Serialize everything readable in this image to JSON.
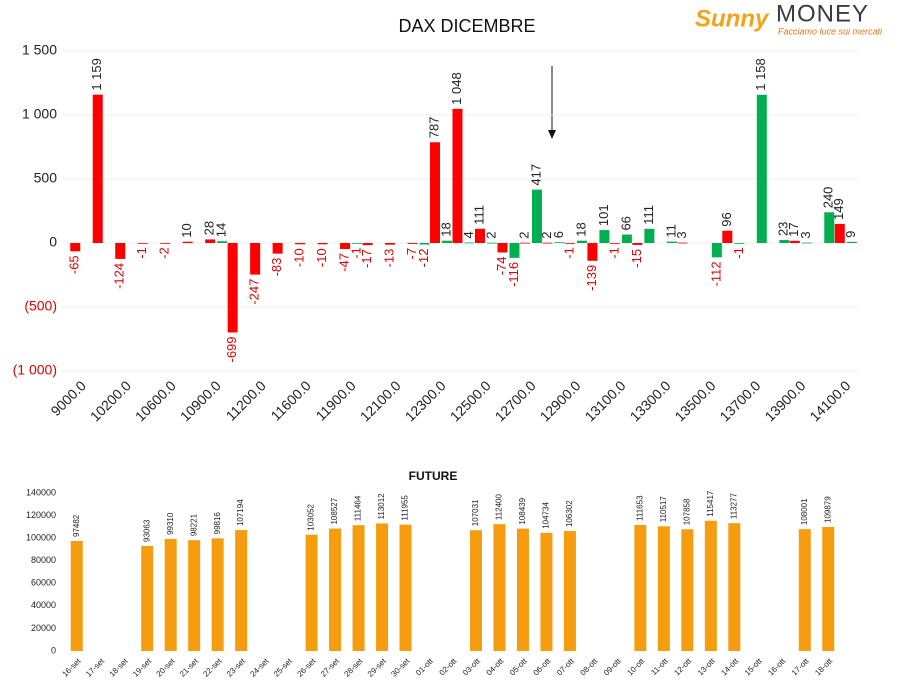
{
  "logo": {
    "brand": "Sunny",
    "name": "MONEY",
    "tagline": "Facciamo luce sui mercati"
  },
  "chart_data": [
    {
      "type": "bar",
      "title": "DAX DICEMBRE",
      "categories": [
        "9000.0",
        null,
        "10200.0",
        null,
        "10600.0",
        null,
        "10900.0",
        null,
        "11200.0",
        null,
        "11600.0",
        null,
        "11900.0",
        null,
        "12100.0",
        null,
        "12300.0",
        null,
        "12500.0",
        null,
        "12700.0",
        null,
        "12900.0",
        null,
        "13100.0",
        null,
        "13300.0",
        null,
        "13500.0",
        null,
        "13700.0",
        null,
        "13900.0",
        null,
        "14100.0"
      ],
      "series": [
        {
          "color": "#ff0000",
          "values": [
            -65,
            1159,
            -124,
            -1,
            -2,
            10,
            28,
            -699,
            -247,
            -83,
            -10,
            -10,
            -47,
            -17,
            -13,
            -7,
            787,
            1048,
            111,
            -74,
            2,
            2,
            -1,
            -139,
            -1,
            -15,
            null,
            3,
            null,
            96,
            null,
            null,
            17,
            null,
            149
          ],
          "value_labels": [
            "-65",
            "1 159",
            "-124",
            "-1",
            "-2",
            "10",
            "28",
            "-699",
            "-247",
            "-83",
            "-10",
            "-10",
            "-47",
            "-17",
            "-13",
            "-7",
            "787",
            "1 048",
            "111",
            "-74",
            "2",
            "2",
            "-1",
            "-139",
            "-1",
            "-15",
            null,
            "3",
            null,
            "96",
            null,
            null,
            "17",
            null,
            "149"
          ]
        },
        {
          "color": "#00b050",
          "values": [
            null,
            null,
            null,
            null,
            null,
            null,
            14,
            null,
            null,
            null,
            null,
            null,
            -1,
            null,
            null,
            -12,
            18,
            4,
            2,
            -116,
            417,
            6,
            18,
            101,
            66,
            111,
            11,
            null,
            -112,
            -1,
            1158,
            23,
            3,
            240,
            9
          ],
          "value_labels": [
            null,
            null,
            null,
            null,
            null,
            null,
            "14",
            null,
            null,
            null,
            null,
            null,
            "-1",
            null,
            null,
            "-12",
            "18",
            "4",
            "2",
            "-116",
            "417",
            "6",
            "18",
            "101",
            "66",
            "111",
            "11",
            null,
            "-112",
            "-1",
            "1 158",
            "23",
            "3",
            "240",
            "9"
          ]
        }
      ],
      "ylim": [
        -1000,
        1500
      ],
      "yticks": [
        {
          "value": -1000,
          "label": "(1 000)"
        },
        {
          "value": -500,
          "label": "(500)"
        },
        0,
        500,
        {
          "value": 1000,
          "label": "1 000"
        },
        {
          "value": 1500,
          "label": "1 500"
        }
      ],
      "grid": true
    },
    {
      "type": "bar",
      "title": "FUTURE",
      "categories": [
        "16-set",
        "17-set",
        "18-set",
        "19-set",
        "20-set",
        "21-set",
        "22-set",
        "23-set",
        "24-set",
        "25-set",
        "26-set",
        "27-set",
        "28-set",
        "29-set",
        "30-set",
        "01-ott",
        "02-ott",
        "03-ott",
        "04-ott",
        "05-ott",
        "06-ott",
        "07-ott",
        "08-ott",
        "09-ott",
        "10-ott",
        "11-ott",
        "12-ott",
        "13-ott",
        "14-ott",
        "15-ott",
        "16-ott",
        "17-ott",
        "18-ott"
      ],
      "values": [
        97482,
        null,
        null,
        93063,
        99310,
        98221,
        99816,
        107194,
        null,
        null,
        103052,
        108527,
        111464,
        113012,
        111955,
        null,
        null,
        107031,
        112400,
        108439,
        104734,
        106302,
        null,
        null,
        111653,
        110517,
        107858,
        115417,
        113277,
        null,
        null,
        108001,
        109879
      ],
      "color": "#f59d0e",
      "ylim": [
        0,
        140000
      ],
      "yticks": [
        0,
        20000,
        40000,
        60000,
        80000,
        100000,
        120000,
        140000
      ],
      "grid": false
    }
  ]
}
